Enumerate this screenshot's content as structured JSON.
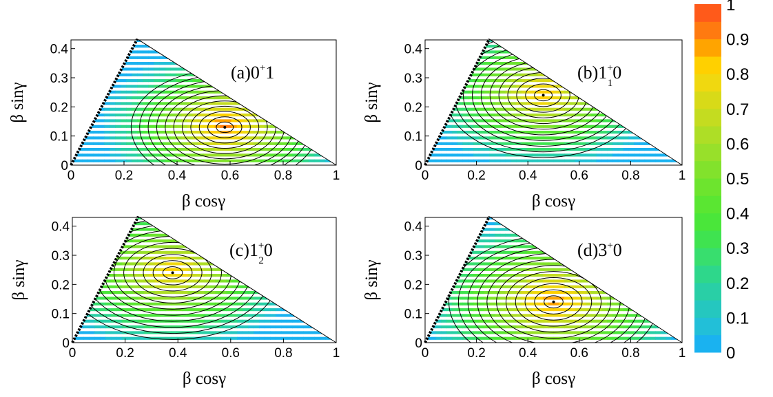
{
  "colormap": [
    "#1ab2f0",
    "#22bfd8",
    "#25c7bf",
    "#29cfa6",
    "#2ed78b",
    "#38de6e",
    "#3fe350",
    "#4ae63a",
    "#5ae632",
    "#6de42e",
    "#82e22c",
    "#98e02a",
    "#aede26",
    "#c4dc20",
    "#d8da18",
    "#f0d810",
    "#ffd000",
    "#ffa400",
    "#ff7a10",
    "#ff5a1a"
  ],
  "chart_data": [
    {
      "type": "heatmap",
      "panel": "(a)",
      "label_main": "(a)0",
      "label_sup": "+",
      "label_sub": "",
      "label_tail": "1",
      "xlabel": "β cosγ",
      "ylabel": "β sinγ",
      "xticks": [
        "0",
        "0.2",
        "0.4",
        "0.6",
        "0.8",
        "1"
      ],
      "yticks": [
        "0",
        "0.1",
        "0.2",
        "0.3",
        "0.4"
      ],
      "xlim": [
        0,
        1
      ],
      "ylim": [
        0,
        0.43
      ],
      "minimum": {
        "x": 0.58,
        "y": 0.13
      },
      "peak_value": 0.93,
      "spread": 0.26
    },
    {
      "type": "heatmap",
      "panel": "(b)",
      "label_main": "(b)1",
      "label_sup": "+",
      "label_sub": "1",
      "label_tail": "0",
      "xlabel": "β cosγ",
      "ylabel": "β sinγ",
      "xticks": [
        "0",
        "0.2",
        "0.4",
        "0.6",
        "0.8",
        "1"
      ],
      "yticks": [
        "0",
        "0.1",
        "0.2",
        "0.3",
        "0.4"
      ],
      "xlim": [
        0,
        1
      ],
      "ylim": [
        0,
        0.43
      ],
      "minimum": {
        "x": 0.46,
        "y": 0.24
      },
      "peak_value": 0.86,
      "spread": 0.28
    },
    {
      "type": "heatmap",
      "panel": "(c)",
      "label_main": "(c)1",
      "label_sup": "+",
      "label_sub": "2",
      "label_tail": "0",
      "xlabel": "β cosγ",
      "ylabel": "β sinγ",
      "xticks": [
        "0",
        "0.2",
        "0.4",
        "0.6",
        "0.8",
        "1"
      ],
      "yticks": [
        "0",
        "0.1",
        "0.2",
        "0.3",
        "0.4"
      ],
      "xlim": [
        0,
        1
      ],
      "ylim": [
        0,
        0.43
      ],
      "minimum": {
        "x": 0.38,
        "y": 0.24
      },
      "peak_value": 0.84,
      "spread": 0.3
    },
    {
      "type": "heatmap",
      "panel": "(d)",
      "label_main": "(d)3",
      "label_sup": "+",
      "label_sub": "",
      "label_tail": "0",
      "xlabel": "β cosγ",
      "ylabel": "β sinγ",
      "xticks": [
        "0",
        "0.2",
        "0.4",
        "0.6",
        "0.8",
        "1"
      ],
      "yticks": [
        "0",
        "0.1",
        "0.2",
        "0.3",
        "0.4"
      ],
      "xlim": [
        0,
        1
      ],
      "ylim": [
        0,
        0.43
      ],
      "minimum": {
        "x": 0.5,
        "y": 0.14
      },
      "peak_value": 0.91,
      "spread": 0.3
    }
  ],
  "colorbar": {
    "ticks": [
      "0",
      "0.1",
      "0.2",
      "0.3",
      "0.4",
      "0.5",
      "0.6",
      "0.7",
      "0.8",
      "0.9",
      "1"
    ],
    "min": 0,
    "max": 1
  }
}
